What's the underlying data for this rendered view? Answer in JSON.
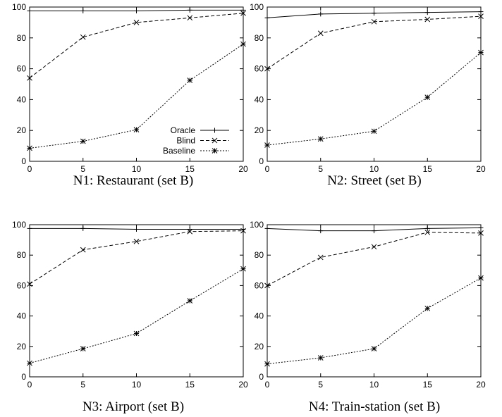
{
  "legend": [
    "Oracle",
    "Blind",
    "Baseline"
  ],
  "colors": {
    "axis": "#000000",
    "line": "#000000",
    "background": "#ffffff"
  },
  "chart_data": [
    {
      "type": "line",
      "title": "N1: Restaurant (set B)",
      "x": [
        0,
        5,
        10,
        15,
        20
      ],
      "xticks": [
        "0",
        "5",
        "10",
        "15",
        "20"
      ],
      "yticks": [
        "0",
        "20",
        "40",
        "60",
        "80",
        "100"
      ],
      "xlim": [
        0,
        20
      ],
      "ylim": [
        0,
        100
      ],
      "grid": false,
      "legend_position": "bottom-right",
      "series": [
        {
          "name": "Oracle",
          "marker": "plus",
          "dash": "solid",
          "values": [
            97.5,
            97.5,
            97.5,
            98,
            98
          ]
        },
        {
          "name": "Blind",
          "marker": "cross",
          "dash": "dashed",
          "values": [
            54,
            80.5,
            90,
            93,
            96
          ]
        },
        {
          "name": "Baseline",
          "marker": "star",
          "dash": "dotted",
          "values": [
            8.5,
            13,
            20.5,
            52.5,
            76
          ]
        }
      ]
    },
    {
      "type": "line",
      "title": "N2: Street (set B)",
      "x": [
        0,
        5,
        10,
        15,
        20
      ],
      "xticks": [
        "0",
        "5",
        "10",
        "15",
        "20"
      ],
      "yticks": [
        "0",
        "20",
        "40",
        "60",
        "80",
        "100"
      ],
      "xlim": [
        0,
        20
      ],
      "ylim": [
        0,
        100
      ],
      "grid": false,
      "series": [
        {
          "name": "Oracle",
          "marker": "plus",
          "dash": "solid",
          "values": [
            93,
            95.5,
            96,
            96.5,
            97
          ]
        },
        {
          "name": "Blind",
          "marker": "cross",
          "dash": "dashed",
          "values": [
            60,
            83,
            90.5,
            92,
            94
          ]
        },
        {
          "name": "Baseline",
          "marker": "star",
          "dash": "dotted",
          "values": [
            10.5,
            14.5,
            19.5,
            41.5,
            70.5
          ]
        }
      ]
    },
    {
      "type": "line",
      "title": "N3: Airport (set B)",
      "x": [
        0,
        5,
        10,
        15,
        20
      ],
      "xticks": [
        "0",
        "5",
        "10",
        "15",
        "20"
      ],
      "yticks": [
        "0",
        "20",
        "40",
        "60",
        "80",
        "100"
      ],
      "xlim": [
        0,
        20
      ],
      "ylim": [
        0,
        100
      ],
      "grid": false,
      "series": [
        {
          "name": "Oracle",
          "marker": "plus",
          "dash": "solid",
          "values": [
            97.5,
            97.5,
            97,
            97,
            97
          ]
        },
        {
          "name": "Blind",
          "marker": "cross",
          "dash": "dashed",
          "values": [
            61,
            83.5,
            89,
            95.5,
            96
          ]
        },
        {
          "name": "Baseline",
          "marker": "star",
          "dash": "dotted",
          "values": [
            9,
            18.5,
            28.5,
            50,
            71
          ]
        }
      ]
    },
    {
      "type": "line",
      "title": "N4: Train-station (set B)",
      "x": [
        0,
        5,
        10,
        15,
        20
      ],
      "xticks": [
        "0",
        "5",
        "10",
        "15",
        "20"
      ],
      "yticks": [
        "0",
        "20",
        "40",
        "60",
        "80",
        "100"
      ],
      "xlim": [
        0,
        20
      ],
      "ylim": [
        0,
        100
      ],
      "grid": false,
      "series": [
        {
          "name": "Oracle",
          "marker": "plus",
          "dash": "solid",
          "values": [
            97.5,
            96,
            96,
            97.5,
            98
          ]
        },
        {
          "name": "Blind",
          "marker": "cross",
          "dash": "dashed",
          "values": [
            60,
            78.5,
            85.5,
            95,
            94.5
          ]
        },
        {
          "name": "Baseline",
          "marker": "star",
          "dash": "dotted",
          "values": [
            8.5,
            12.5,
            18.5,
            45,
            65
          ]
        }
      ]
    }
  ]
}
